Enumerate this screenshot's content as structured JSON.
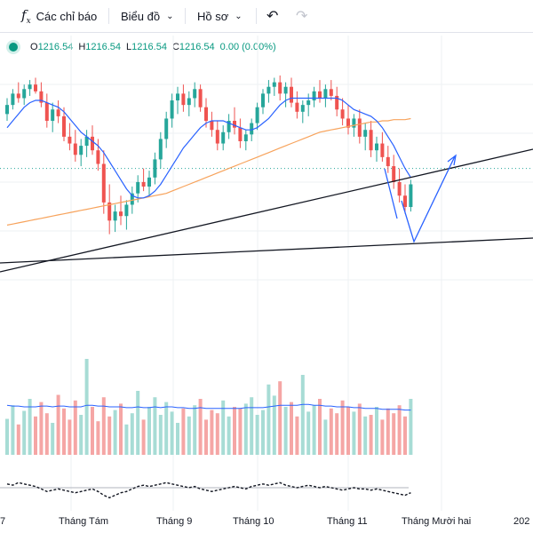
{
  "toolbar": {
    "indicators_label": "Các chỉ báo",
    "chart_type_label": "Biểu đồ",
    "profile_label": "Hồ sơ",
    "fx_icon": "fx-icon",
    "undo_icon": "undo-icon",
    "redo_icon": "redo-icon"
  },
  "legend": {
    "o_label": "O",
    "o_value": "1216.54",
    "h_label": "H",
    "h_value": "1216.54",
    "l_label": "L",
    "l_value": "1216.54",
    "c_label": "C",
    "c_value": "1216.54",
    "change": "0.00 (0.00%)"
  },
  "colors": {
    "up": "#26a69a",
    "down": "#ef5350",
    "ma": "#2962ff",
    "ma_long": "#f7a35c",
    "trend": "#131722"
  },
  "chart_data": {
    "type": "candlestick",
    "x_ticks": [
      "7",
      "Tháng Tám",
      "Tháng 9",
      "Tháng 10",
      "Tháng 11",
      "Tháng Mười hai",
      "202"
    ],
    "ohlc": [
      [
        1238,
        1252,
        1232,
        1246
      ],
      [
        1246,
        1260,
        1242,
        1256
      ],
      [
        1256,
        1266,
        1248,
        1252
      ],
      [
        1252,
        1264,
        1246,
        1260
      ],
      [
        1260,
        1268,
        1254,
        1264
      ],
      [
        1264,
        1270,
        1256,
        1258
      ],
      [
        1258,
        1266,
        1244,
        1248
      ],
      [
        1248,
        1256,
        1226,
        1232
      ],
      [
        1232,
        1248,
        1222,
        1242
      ],
      [
        1242,
        1250,
        1230,
        1236
      ],
      [
        1236,
        1244,
        1214,
        1218
      ],
      [
        1218,
        1230,
        1206,
        1212
      ],
      [
        1212,
        1224,
        1196,
        1202
      ],
      [
        1202,
        1216,
        1192,
        1210
      ],
      [
        1210,
        1224,
        1200,
        1218
      ],
      [
        1218,
        1228,
        1202,
        1206
      ],
      [
        1206,
        1216,
        1188,
        1194
      ],
      [
        1194,
        1206,
        1150,
        1160
      ],
      [
        1160,
        1176,
        1132,
        1144
      ],
      [
        1144,
        1158,
        1134,
        1152
      ],
      [
        1152,
        1166,
        1140,
        1148
      ],
      [
        1148,
        1162,
        1136,
        1158
      ],
      [
        1158,
        1174,
        1150,
        1168
      ],
      [
        1168,
        1184,
        1160,
        1178
      ],
      [
        1178,
        1190,
        1170,
        1174
      ],
      [
        1174,
        1188,
        1166,
        1182
      ],
      [
        1182,
        1204,
        1176,
        1198
      ],
      [
        1198,
        1222,
        1190,
        1216
      ],
      [
        1216,
        1240,
        1208,
        1234
      ],
      [
        1234,
        1256,
        1226,
        1250
      ],
      [
        1250,
        1262,
        1238,
        1256
      ],
      [
        1256,
        1264,
        1240,
        1246
      ],
      [
        1246,
        1258,
        1236,
        1252
      ],
      [
        1252,
        1266,
        1244,
        1260
      ],
      [
        1260,
        1264,
        1240,
        1244
      ],
      [
        1244,
        1252,
        1226,
        1232
      ],
      [
        1232,
        1240,
        1218,
        1224
      ],
      [
        1224,
        1232,
        1206,
        1212
      ],
      [
        1212,
        1228,
        1206,
        1222
      ],
      [
        1222,
        1238,
        1216,
        1232
      ],
      [
        1232,
        1244,
        1220,
        1226
      ],
      [
        1226,
        1234,
        1208,
        1214
      ],
      [
        1214,
        1224,
        1206,
        1220
      ],
      [
        1220,
        1234,
        1214,
        1230
      ],
      [
        1230,
        1248,
        1224,
        1244
      ],
      [
        1244,
        1260,
        1238,
        1256
      ],
      [
        1256,
        1268,
        1248,
        1262
      ],
      [
        1262,
        1270,
        1254,
        1266
      ],
      [
        1266,
        1272,
        1250,
        1256
      ],
      [
        1256,
        1266,
        1244,
        1262
      ],
      [
        1262,
        1270,
        1244,
        1248
      ],
      [
        1248,
        1258,
        1234,
        1240
      ],
      [
        1240,
        1250,
        1230,
        1246
      ],
      [
        1246,
        1256,
        1236,
        1250
      ],
      [
        1250,
        1262,
        1244,
        1258
      ],
      [
        1258,
        1268,
        1248,
        1252
      ],
      [
        1252,
        1264,
        1244,
        1260
      ],
      [
        1260,
        1268,
        1250,
        1254
      ],
      [
        1254,
        1262,
        1236,
        1242
      ],
      [
        1242,
        1252,
        1228,
        1234
      ],
      [
        1234,
        1246,
        1220,
        1226
      ],
      [
        1226,
        1238,
        1218,
        1234
      ],
      [
        1234,
        1242,
        1212,
        1218
      ],
      [
        1218,
        1230,
        1206,
        1224
      ],
      [
        1224,
        1232,
        1200,
        1206
      ],
      [
        1206,
        1218,
        1196,
        1212
      ],
      [
        1212,
        1222,
        1196,
        1200
      ],
      [
        1200,
        1210,
        1186,
        1192
      ],
      [
        1192,
        1202,
        1172,
        1178
      ],
      [
        1178,
        1190,
        1160,
        1166
      ],
      [
        1166,
        1176,
        1150,
        1156
      ],
      [
        1156,
        1180,
        1152,
        1176
      ]
    ],
    "ma_short": [
      1226,
      1232,
      1238,
      1244,
      1248,
      1250,
      1250,
      1248,
      1246,
      1244,
      1240,
      1234,
      1228,
      1222,
      1218,
      1214,
      1210,
      1204,
      1196,
      1188,
      1180,
      1172,
      1166,
      1164,
      1164,
      1166,
      1170,
      1176,
      1184,
      1192,
      1200,
      1208,
      1214,
      1220,
      1226,
      1230,
      1232,
      1232,
      1232,
      1230,
      1228,
      1226,
      1224,
      1224,
      1226,
      1230,
      1234,
      1240,
      1246,
      1250,
      1252,
      1252,
      1252,
      1252,
      1252,
      1252,
      1252,
      1252,
      1252,
      1250,
      1246,
      1242,
      1240,
      1238,
      1236,
      1232,
      1226,
      1218,
      1210,
      1200,
      1190,
      1182
    ],
    "ma_long": [
      1140,
      1141,
      1142,
      1143,
      1144,
      1145,
      1146,
      1147,
      1148,
      1149,
      1150,
      1151,
      1152,
      1153,
      1154,
      1155,
      1156,
      1157,
      1158,
      1159,
      1160,
      1161,
      1162,
      1163,
      1164,
      1165,
      1166,
      1167,
      1168,
      1170,
      1172,
      1174,
      1176,
      1178,
      1180,
      1182,
      1184,
      1186,
      1188,
      1190,
      1192,
      1194,
      1196,
      1198,
      1200,
      1202,
      1204,
      1206,
      1208,
      1210,
      1212,
      1214,
      1216,
      1218,
      1220,
      1222,
      1223,
      1224,
      1225,
      1226,
      1227,
      1228,
      1229,
      1230,
      1231,
      1231,
      1232,
      1232,
      1233,
      1233,
      1233,
      1234
    ],
    "volume": [
      45,
      62,
      38,
      55,
      70,
      48,
      66,
      52,
      40,
      75,
      58,
      44,
      68,
      50,
      120,
      60,
      42,
      72,
      48,
      56,
      64,
      38,
      52,
      80,
      44,
      60,
      72,
      50,
      66,
      54,
      40,
      58,
      48,
      62,
      70,
      44,
      56,
      52,
      68,
      48,
      60,
      58,
      64,
      72,
      50,
      56,
      88,
      74,
      92,
      60,
      66,
      48,
      100,
      54,
      62,
      70,
      44,
      58,
      52,
      68,
      60,
      54,
      64,
      48,
      50,
      60,
      44,
      58,
      52,
      62,
      48,
      70
    ],
    "volume_ma": [
      62,
      61,
      61,
      60,
      60,
      60,
      61,
      61,
      60,
      61,
      61,
      60,
      60,
      60,
      62,
      62,
      61,
      61,
      60,
      60,
      60,
      59,
      59,
      60,
      59,
      59,
      60,
      59,
      60,
      60,
      59,
      59,
      58,
      58,
      59,
      58,
      58,
      58,
      58,
      58,
      58,
      58,
      59,
      59,
      59,
      59,
      60,
      61,
      62,
      62,
      62,
      62,
      63,
      63,
      62,
      62,
      61,
      61,
      60,
      60,
      60,
      59,
      59,
      58,
      58,
      58,
      57,
      57,
      57,
      57,
      56,
      56
    ],
    "osc": [
      3,
      2,
      4,
      3,
      2,
      1,
      -1,
      -3,
      -2,
      -1,
      -2,
      -3,
      -4,
      -3,
      -2,
      -1,
      -3,
      -6,
      -8,
      -6,
      -4,
      -3,
      -1,
      1,
      2,
      1,
      2,
      3,
      4,
      3,
      2,
      1,
      0,
      1,
      -1,
      -2,
      -3,
      -2,
      -1,
      0,
      1,
      0,
      -1,
      1,
      2,
      3,
      2,
      3,
      4,
      2,
      1,
      0,
      1,
      2,
      1,
      0,
      1,
      0,
      -1,
      -2,
      -1,
      0,
      -1,
      -1,
      -2,
      -1,
      -2,
      -3,
      -4,
      -5,
      -6,
      -4
    ],
    "price_ylim": [
      1080,
      1290
    ],
    "volume_ylim": [
      0,
      130
    ],
    "osc_ylim": [
      -12,
      12
    ]
  }
}
